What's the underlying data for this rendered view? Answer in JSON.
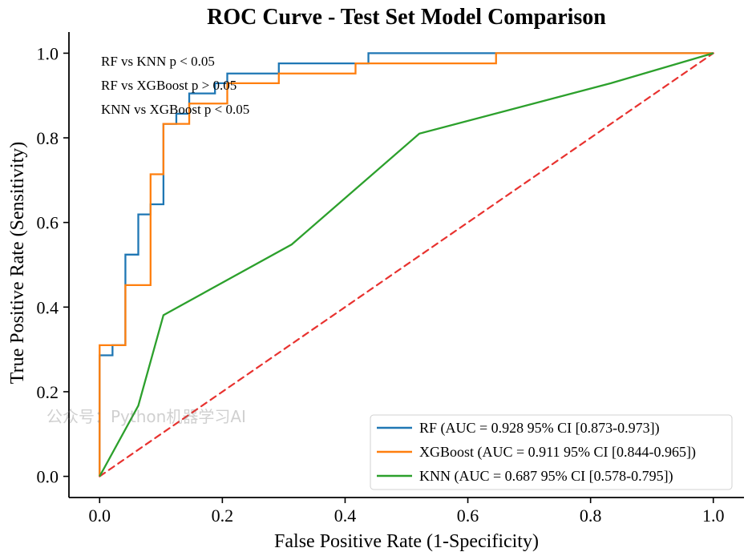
{
  "chart_data": {
    "type": "line",
    "title": "ROC Curve - Test Set Model Comparison",
    "xlabel": "False Positive Rate (1-Specificity)",
    "ylabel": "True Positive Rate (Sensitivity)",
    "xlim": [
      -0.05,
      1.05
    ],
    "ylim": [
      -0.05,
      1.05
    ],
    "x_ticks": [
      0.0,
      0.2,
      0.4,
      0.6,
      0.8,
      1.0
    ],
    "y_ticks": [
      0.0,
      0.2,
      0.4,
      0.6,
      0.8,
      1.0
    ],
    "x_tick_labels": [
      "0.0",
      "0.2",
      "0.4",
      "0.6",
      "0.8",
      "1.0"
    ],
    "y_tick_labels": [
      "0.0",
      "0.2",
      "0.4",
      "0.6",
      "0.8",
      "1.0"
    ],
    "annotations": [
      "RF vs KNN p < 0.05",
      "RF vs XGBoost p > 0.05",
      "KNN vs XGBoost p < 0.05"
    ],
    "legend_position": "lower-right",
    "series": [
      {
        "name": "RF",
        "legend_label": "RF (AUC = 0.928 95% CI [0.873-0.973])",
        "color": "#1f77b4",
        "style": "solid",
        "points": [
          [
            0.0,
            0.0
          ],
          [
            0.0,
            0.286
          ],
          [
            0.021,
            0.286
          ],
          [
            0.021,
            0.31
          ],
          [
            0.042,
            0.31
          ],
          [
            0.042,
            0.333
          ],
          [
            0.042,
            0.524
          ],
          [
            0.063,
            0.524
          ],
          [
            0.063,
            0.571
          ],
          [
            0.063,
            0.619
          ],
          [
            0.083,
            0.619
          ],
          [
            0.083,
            0.643
          ],
          [
            0.104,
            0.643
          ],
          [
            0.104,
            0.833
          ],
          [
            0.125,
            0.833
          ],
          [
            0.125,
            0.857
          ],
          [
            0.146,
            0.857
          ],
          [
            0.146,
            0.905
          ],
          [
            0.188,
            0.905
          ],
          [
            0.188,
            0.929
          ],
          [
            0.208,
            0.929
          ],
          [
            0.208,
            0.952
          ],
          [
            0.271,
            0.952
          ],
          [
            0.271,
            0.952
          ],
          [
            0.292,
            0.952
          ],
          [
            0.292,
            0.976
          ],
          [
            0.438,
            0.976
          ],
          [
            0.438,
            1.0
          ],
          [
            1.0,
            1.0
          ]
        ]
      },
      {
        "name": "XGBoost",
        "legend_label": "XGBoost (AUC = 0.911 95% CI [0.844-0.965])",
        "color": "#ff7f0e",
        "style": "solid",
        "points": [
          [
            0.0,
            0.0
          ],
          [
            0.0,
            0.31
          ],
          [
            0.042,
            0.31
          ],
          [
            0.042,
            0.452
          ],
          [
            0.083,
            0.452
          ],
          [
            0.083,
            0.714
          ],
          [
            0.104,
            0.714
          ],
          [
            0.104,
            0.833
          ],
          [
            0.146,
            0.833
          ],
          [
            0.146,
            0.881
          ],
          [
            0.208,
            0.881
          ],
          [
            0.208,
            0.929
          ],
          [
            0.292,
            0.929
          ],
          [
            0.292,
            0.952
          ],
          [
            0.417,
            0.952
          ],
          [
            0.417,
            0.976
          ],
          [
            0.646,
            0.976
          ],
          [
            0.646,
            1.0
          ],
          [
            1.0,
            1.0
          ]
        ]
      },
      {
        "name": "KNN",
        "legend_label": "KNN (AUC = 0.687 95% CI [0.578-0.795])",
        "color": "#2ca02c",
        "style": "solid",
        "points": [
          [
            0.0,
            0.0
          ],
          [
            0.063,
            0.167
          ],
          [
            0.104,
            0.381
          ],
          [
            0.313,
            0.548
          ],
          [
            0.521,
            0.81
          ],
          [
            0.833,
            0.929
          ],
          [
            1.0,
            1.0
          ]
        ]
      },
      {
        "name": "Chance",
        "legend_label": "",
        "color": "#e8322f",
        "style": "dashed",
        "points": [
          [
            0.0,
            0.0
          ],
          [
            1.0,
            1.0
          ]
        ]
      }
    ]
  },
  "watermark": {
    "text": "公众号：Python机器学习AI"
  }
}
